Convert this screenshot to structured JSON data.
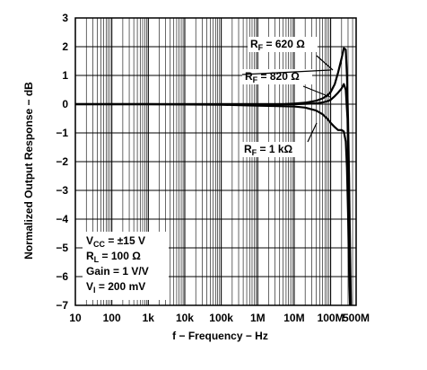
{
  "chart_data": {
    "type": "line",
    "title": "",
    "xlabel": "f − Frequency − Hz",
    "ylabel": "Normalized Output Response − dB",
    "x_scale": "log",
    "xlim": [
      10,
      500000000
    ],
    "ylim": [
      -7,
      3
    ],
    "grid": true,
    "x_ticks": [
      {
        "value": 10,
        "label": "10"
      },
      {
        "value": 100,
        "label": "100"
      },
      {
        "value": 1000,
        "label": "1k"
      },
      {
        "value": 10000,
        "label": "10k"
      },
      {
        "value": 100000,
        "label": "100k"
      },
      {
        "value": 1000000,
        "label": "1M"
      },
      {
        "value": 10000000,
        "label": "10M"
      },
      {
        "value": 100000000,
        "label": "100M"
      },
      {
        "value": 500000000,
        "label": "500M"
      }
    ],
    "y_ticks": [
      {
        "value": 3,
        "label": "3"
      },
      {
        "value": 2,
        "label": "2"
      },
      {
        "value": 1,
        "label": "1"
      },
      {
        "value": 0,
        "label": "0"
      },
      {
        "value": -1,
        "label": "−1"
      },
      {
        "value": -2,
        "label": "−2"
      },
      {
        "value": -3,
        "label": "−3"
      },
      {
        "value": -4,
        "label": "−4"
      },
      {
        "value": -5,
        "label": "−5"
      },
      {
        "value": -6,
        "label": "−6"
      },
      {
        "value": -7,
        "label": "−7"
      }
    ],
    "series": [
      {
        "name": "RF = 620 Ω",
        "x": [
          10,
          1000,
          100000,
          1000000,
          5000000,
          10000000,
          20000000,
          40000000,
          60000000,
          80000000,
          100000000,
          130000000,
          160000000,
          200000000,
          230000000,
          260000000,
          280000000,
          300000000,
          320000000,
          340000000,
          360000000
        ],
        "y": [
          0,
          0,
          0,
          0,
          0,
          0.02,
          0.05,
          0.12,
          0.2,
          0.3,
          0.42,
          0.7,
          1.1,
          1.6,
          1.95,
          1.9,
          1.0,
          -0.5,
          -2.5,
          -5.0,
          -7.0
        ]
      },
      {
        "name": "RF = 820 Ω",
        "x": [
          10,
          1000,
          100000,
          1000000,
          5000000,
          10000000,
          20000000,
          40000000,
          60000000,
          80000000,
          100000000,
          130000000,
          160000000,
          200000000,
          230000000,
          260000000,
          290000000,
          310000000,
          330000000,
          350000000
        ],
        "y": [
          0,
          0,
          0,
          0,
          0,
          0,
          0.01,
          0.03,
          0.06,
          0.1,
          0.15,
          0.28,
          0.4,
          0.55,
          0.7,
          0.5,
          -0.5,
          -2.5,
          -5.0,
          -7.0
        ]
      },
      {
        "name": "RF = 1 kΩ",
        "x": [
          10,
          1000,
          100000,
          1000000,
          5000000,
          10000000,
          20000000,
          40000000,
          60000000,
          80000000,
          100000000,
          130000000,
          160000000,
          200000000,
          230000000,
          260000000,
          280000000,
          300000000,
          320000000,
          340000000
        ],
        "y": [
          0,
          0,
          -0.02,
          -0.05,
          -0.07,
          -0.08,
          -0.12,
          -0.22,
          -0.35,
          -0.5,
          -0.65,
          -0.8,
          -0.9,
          -0.9,
          -0.95,
          -1.3,
          -2.2,
          -3.8,
          -5.8,
          -7.0
        ]
      }
    ],
    "annotations": [
      {
        "main": "R",
        "sub": "F",
        "rest": " = 620 Ω",
        "ax": 279,
        "ay": 53,
        "lines": [
          [
            353,
            62,
            371,
            78
          ]
        ]
      },
      {
        "main": "R",
        "sub": "F",
        "rest": " = 820 Ω",
        "ax": 273,
        "ay": 89,
        "lines": [
          [
            270,
            83,
            368,
            78
          ],
          [
            338,
            96,
            368,
            108
          ]
        ]
      },
      {
        "main": "R",
        "sub": "F",
        "rest": " = 1 kΩ",
        "ax": 272,
        "ay": 170,
        "lines": [
          [
            343,
            158,
            353,
            137
          ]
        ]
      }
    ],
    "conditions": [
      {
        "main": "V",
        "sub": "CC",
        "rest": " = ±15 V"
      },
      {
        "main": "R",
        "sub": "L",
        "rest": " = 100 Ω"
      },
      {
        "main": "Gain = 1 V/V",
        "sub": "",
        "rest": ""
      },
      {
        "main": "V",
        "sub": "I",
        "rest": " = 200 mV"
      }
    ]
  }
}
